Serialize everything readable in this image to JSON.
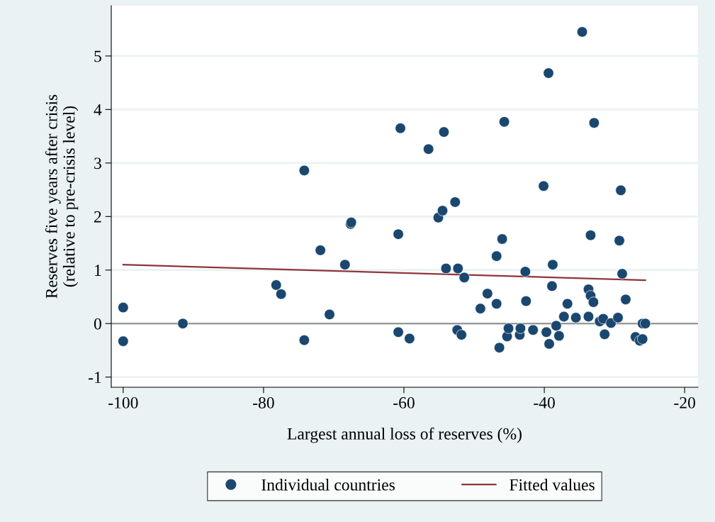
{
  "chart_data": {
    "type": "scatter",
    "xlabel": "Largest annual loss of reserves (%)",
    "ylabel": "Reserves five years after crisis\n(relative to pre-crisis level)",
    "xlim": [
      -101.7,
      -18.1
    ],
    "xticks": [
      -100,
      -80,
      -60,
      -40,
      -20
    ],
    "ylim": [
      -1.19,
      5.94
    ],
    "yticks": [
      -1,
      0,
      1,
      2,
      3,
      4,
      5
    ],
    "grid": "y",
    "legend": "bottom",
    "ref_lines": [
      {
        "axis": "y",
        "value": 0,
        "color": "#8c8c8c"
      }
    ],
    "series": [
      {
        "name": "Individual countries",
        "color": "#1a476f",
        "marker": "circle",
        "x": [
          -100,
          -100,
          -91.5,
          -78.2,
          -77.5,
          -74.2,
          -74.2,
          -71.9,
          -70.6,
          -68.4,
          -67.6,
          -67.5,
          -60.8,
          -60.8,
          -60.5,
          -59.2,
          -56.5,
          -55.1,
          -54.5,
          -54.3,
          -54.0,
          -52.7,
          -52.4,
          -52.3,
          -51.8,
          -51.4,
          -49.1,
          -48.1,
          -46.8,
          -46.8,
          -46.4,
          -46.0,
          -45.7,
          -45.3,
          -45.1,
          -43.5,
          -43.4,
          -42.7,
          -42.6,
          -41.6,
          -40.1,
          -39.7,
          -39.4,
          -39.3,
          -38.9,
          -38.8,
          -38.3,
          -37.9,
          -37.2,
          -36.7,
          -35.5,
          -34.6,
          -33.7,
          -33.7,
          -33.4,
          -33.4,
          -32.9,
          -33.0,
          -32.1,
          -31.6,
          -31.4,
          -30.5,
          -29.5,
          -29.3,
          -29.1,
          -28.9,
          -28.4,
          -27.0,
          -26.4,
          -26.0,
          -26.0,
          -25.6
        ],
        "values": [
          0.3,
          -0.33,
          0,
          0.72,
          0.55,
          2.86,
          -0.31,
          1.37,
          0.17,
          1.1,
          1.86,
          1.89,
          1.67,
          -0.16,
          3.65,
          -0.28,
          3.26,
          1.98,
          2.11,
          3.58,
          1.03,
          2.27,
          -0.12,
          1.03,
          -0.21,
          0.86,
          0.28,
          0.56,
          0.37,
          1.26,
          -0.45,
          1.58,
          3.77,
          -0.24,
          -0.09,
          -0.21,
          -0.09,
          0.97,
          0.42,
          -0.12,
          2.57,
          -0.16,
          4.68,
          -0.38,
          0.7,
          1.1,
          -0.04,
          -0.23,
          0.13,
          0.37,
          0.11,
          5.45,
          0.13,
          0.64,
          1.65,
          0.52,
          3.75,
          0.4,
          0.04,
          0.09,
          -0.2,
          0.01,
          0.11,
          1.55,
          2.49,
          0.93,
          0.45,
          -0.25,
          -0.32,
          0.0,
          -0.29,
          0.0
        ]
      },
      {
        "name": "Fitted values",
        "type": "line",
        "color": "#90353b",
        "marker": "none",
        "line_style": "solid",
        "x": [
          -100,
          -25.6
        ],
        "values": [
          1.1,
          0.81
        ]
      }
    ]
  }
}
